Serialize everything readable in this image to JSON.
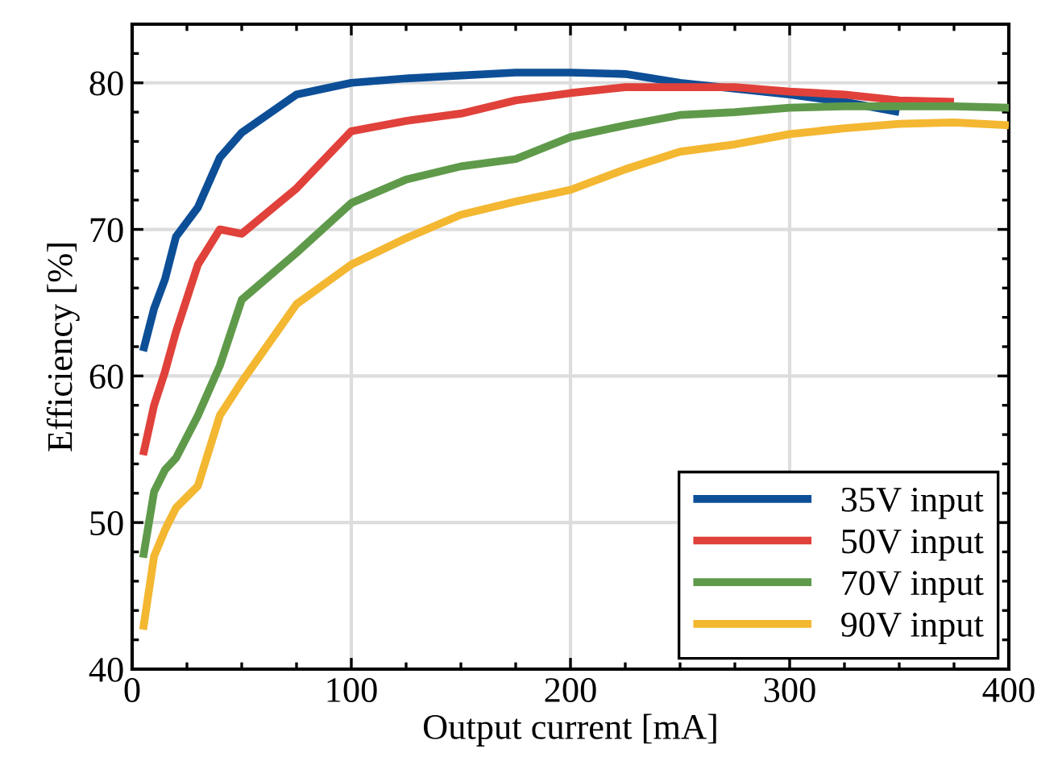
{
  "chart_data": {
    "type": "line",
    "xlabel": "Output current [mA]",
    "ylabel": "Efficiency [%]",
    "x": [
      5,
      10,
      15,
      20,
      30,
      40,
      50,
      75,
      100,
      125,
      150,
      175,
      200,
      225,
      250,
      275,
      300,
      325,
      350,
      375,
      400
    ],
    "series": [
      {
        "name": "35V input",
        "color": "#0d4f97",
        "values": [
          61.7,
          64.6,
          66.6,
          69.5,
          71.5,
          74.9,
          76.6,
          79.2,
          80.0,
          80.3,
          80.5,
          80.7,
          80.7,
          80.6,
          80.0,
          79.6,
          79.2,
          78.7,
          78.0,
          null,
          null
        ]
      },
      {
        "name": "50V input",
        "color": "#e0413a",
        "values": [
          54.6,
          58.0,
          60.3,
          63.0,
          67.6,
          70.0,
          69.7,
          72.8,
          76.7,
          77.4,
          77.9,
          78.8,
          79.3,
          79.7,
          79.7,
          79.7,
          79.4,
          79.2,
          78.8,
          78.7,
          null
        ]
      },
      {
        "name": "70V input",
        "color": "#5f9a4a",
        "values": [
          47.6,
          52.1,
          53.6,
          54.4,
          57.3,
          60.7,
          65.2,
          68.4,
          71.8,
          73.4,
          74.3,
          74.8,
          76.3,
          77.1,
          77.8,
          78.0,
          78.3,
          78.4,
          78.4,
          78.4,
          78.3
        ]
      },
      {
        "name": "90V input",
        "color": "#f3b731",
        "values": [
          42.7,
          47.7,
          49.5,
          51.0,
          52.5,
          57.3,
          59.6,
          64.9,
          67.6,
          69.4,
          71.0,
          71.9,
          72.7,
          74.1,
          75.3,
          75.8,
          76.5,
          76.9,
          77.2,
          77.3,
          77.1
        ]
      }
    ],
    "xlim": [
      0,
      400
    ],
    "ylim": [
      40,
      84
    ],
    "xticks": [
      0,
      {
        "value": 25,
        "label": null
      },
      {
        "value": 50,
        "label": null
      },
      {
        "value": 75,
        "label": null
      },
      100,
      {
        "value": 125,
        "label": null
      },
      {
        "value": 150,
        "label": null
      },
      {
        "value": 175,
        "label": null
      },
      200,
      {
        "value": 225,
        "label": null
      },
      {
        "value": 250,
        "label": null
      },
      {
        "value": 275,
        "label": null
      },
      300,
      {
        "value": 325,
        "label": null
      },
      {
        "value": 350,
        "label": null
      },
      {
        "value": 375,
        "label": null
      },
      400
    ],
    "yticks": [
      40,
      {
        "value": 42,
        "label": null
      },
      {
        "value": 44,
        "label": null
      },
      {
        "value": 46,
        "label": null
      },
      {
        "value": 48,
        "label": null
      },
      50,
      {
        "value": 52,
        "label": null
      },
      {
        "value": 54,
        "label": null
      },
      {
        "value": 56,
        "label": null
      },
      {
        "value": 58,
        "label": null
      },
      60,
      {
        "value": 62,
        "label": null
      },
      {
        "value": 64,
        "label": null
      },
      {
        "value": 66,
        "label": null
      },
      {
        "value": 68,
        "label": null
      },
      70,
      {
        "value": 72,
        "label": null
      },
      {
        "value": 74,
        "label": null
      },
      {
        "value": 76,
        "label": null
      },
      {
        "value": 78,
        "label": null
      },
      80,
      {
        "value": 82,
        "label": null
      },
      {
        "value": 84,
        "label": null
      }
    ],
    "grid": true,
    "legend": "lower right",
    "line_style": "solid",
    "marker": "none"
  }
}
